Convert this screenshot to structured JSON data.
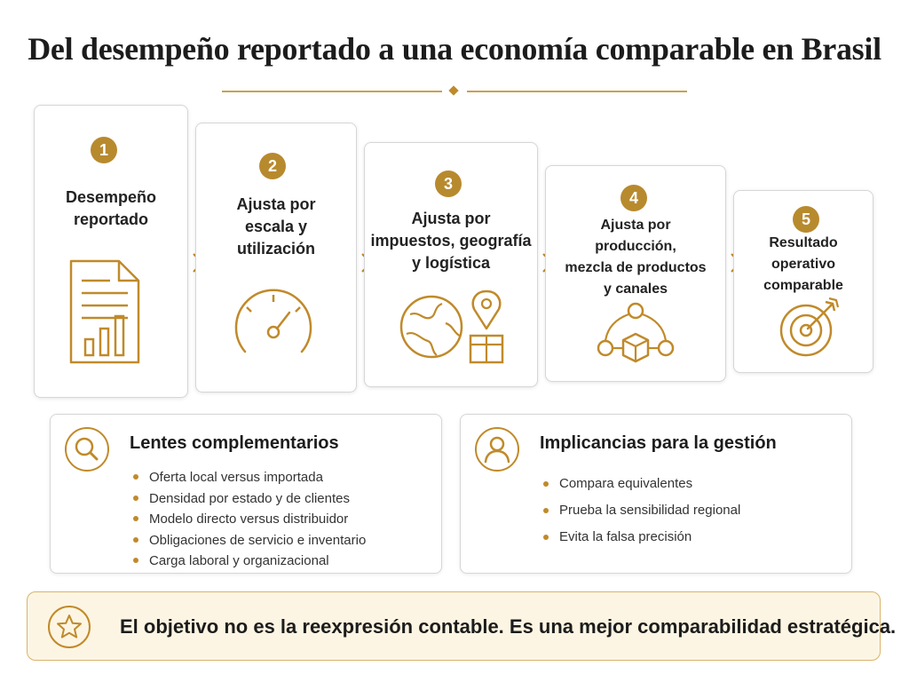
{
  "title": "Del desempeño reportado a una economía comparable en Brasil",
  "steps": [
    {
      "number": "1",
      "lines": [
        "Desempeño",
        "reportado"
      ],
      "icon": "document-chart-icon"
    },
    {
      "number": "2",
      "lines": [
        "Ajusta por",
        "escala y",
        "utilización"
      ],
      "icon": "gauge-icon"
    },
    {
      "number": "3",
      "lines": [
        "Ajusta por",
        "impuestos, geografía",
        "y logística"
      ],
      "icon": "globe-location-box-icon"
    },
    {
      "number": "4",
      "lines": [
        "Ajusta por",
        "producción,",
        "mezcla de productos",
        "y canales"
      ],
      "icon": "network-box-icon"
    },
    {
      "number": "5",
      "lines": [
        "Resultado",
        "operativo",
        "comparable"
      ],
      "icon": "target-icon"
    }
  ],
  "lenses": {
    "title": "Lentes complementarios",
    "icon": "magnifier-icon",
    "items": [
      "Oferta local versus importada",
      "Densidad por estado y de clientes",
      "Modelo directo versus distribuidor",
      "Obligaciones de servicio e inventario",
      "Carga laboral y organizacional"
    ]
  },
  "implications": {
    "title": "Implicancias para la gestión",
    "icon": "person-icon",
    "items": [
      "Compara equivalentes",
      "Prueba la sensibilidad regional",
      "Evita la falsa precisión"
    ]
  },
  "banner": {
    "icon": "star-icon",
    "text": "El objetivo no es la reexpresión contable. Es una mejor comparabilidad estratégica."
  },
  "colors": {
    "accent": "#b88a2e",
    "banner_bg": "#fdf5e3",
    "banner_border": "#d9b36a"
  }
}
